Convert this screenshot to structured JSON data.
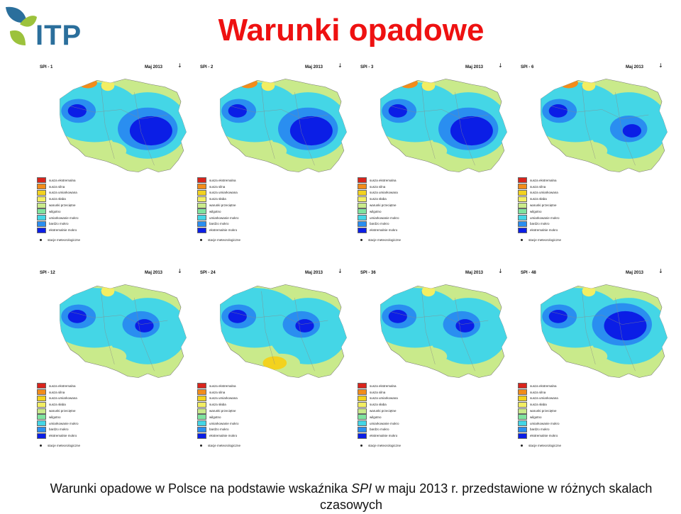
{
  "logo": {
    "text": "ITP"
  },
  "title": "Warunki opadowe",
  "date_label": "Maj 2013",
  "north_arrow": "↓",
  "panels": [
    {
      "label": "SPI - 1"
    },
    {
      "label": "SPI - 2"
    },
    {
      "label": "SPI - 3"
    },
    {
      "label": "SPI - 6"
    },
    {
      "label": "SPI - 12"
    },
    {
      "label": "SPI - 24"
    },
    {
      "label": "SPI - 36"
    },
    {
      "label": "SPI - 48"
    }
  ],
  "legend": [
    {
      "label": "susza ekstremalna",
      "color": "#d9241c"
    },
    {
      "label": "susza silna",
      "color": "#f28c1a"
    },
    {
      "label": "susza umiarkowana",
      "color": "#f3d21e"
    },
    {
      "label": "susza słaba",
      "color": "#f2ee63"
    },
    {
      "label": "warunki przeciętne",
      "color": "#c9ea8b"
    },
    {
      "label": "wilgotno",
      "color": "#7fe39f"
    },
    {
      "label": "umiarkowanie mokro",
      "color": "#44d6e6"
    },
    {
      "label": "bardzo mokro",
      "color": "#2a8ef0"
    },
    {
      "label": "ekstremalnie mokro",
      "color": "#0b1ee6"
    }
  ],
  "stations_label": "stacje meteorologiczne",
  "caption": {
    "part1": "Warunki opadowe w Polsce na podstawie wskaźnika ",
    "spi": "SPI",
    "part2": " w maju 2013 r. przedstawione w różnych skalach",
    "part3": "czasowych"
  }
}
